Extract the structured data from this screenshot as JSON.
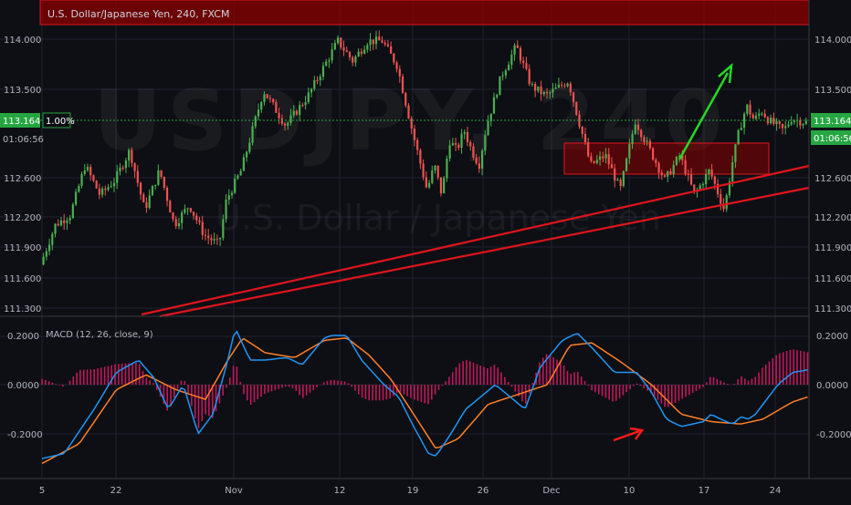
{
  "header": {
    "title": "U.S. Dollar/Japanese Yen, 240, FXCM"
  },
  "watermark": {
    "symbol": "USDJPY, 240",
    "name": "U.S. Dollar / Japanese Yen"
  },
  "price_badge": {
    "price": "113.164",
    "countdown": "01:06:56",
    "percent": "1.00%"
  },
  "macd_label": "MACD (12, 26, close, 9)",
  "colors": {
    "background": "#0d0f14",
    "bull_candle": "#4caf50",
    "bear_candle": "#ef5350",
    "resistance_zone": "#8b0000",
    "trendline": "#e0141c",
    "macd_line": "#2196f3",
    "signal_line": "#ff7f27",
    "histogram": "#c2185b",
    "current_price": "#26a641",
    "arrow_up": "#26d926",
    "arrow_macd": "#ff1a1a"
  },
  "chart_data": [
    {
      "type": "candlestick",
      "title": "U.S. Dollar/Japanese Yen, 240, FXCM",
      "x_ticks": [
        "5",
        "22",
        "Nov",
        "12",
        "19",
        "26",
        "Dec",
        "10",
        "17",
        "24"
      ],
      "y_ticks": [
        "114.000",
        "113.500",
        "112.600",
        "112.200",
        "111.900",
        "111.600",
        "111.300"
      ],
      "y_axis": "right",
      "current_price": 113.164,
      "path_x": [
        0,
        2,
        4,
        6,
        8,
        10,
        12,
        14,
        16,
        18,
        20,
        22,
        24,
        25,
        27,
        30,
        33,
        36,
        40,
        42,
        44,
        46,
        48,
        50,
        52,
        53,
        54,
        55,
        56,
        57,
        58,
        59,
        60,
        62,
        64,
        66,
        68,
        71,
        74,
        76,
        78,
        80,
        84,
        86,
        88,
        90,
        92,
        93,
        94,
        95,
        96,
        97,
        98,
        100,
        101,
        103
      ],
      "path_y": [
        111.73,
        112.13,
        112.23,
        112.73,
        112.43,
        112.58,
        112.88,
        112.28,
        112.68,
        112.13,
        112.33,
        112.03,
        111.93,
        112.38,
        112.68,
        113.48,
        113.13,
        113.43,
        113.98,
        113.78,
        113.98,
        113.98,
        113.73,
        113.08,
        112.48,
        112.73,
        112.43,
        112.98,
        112.88,
        113.08,
        112.88,
        112.73,
        113.13,
        113.63,
        113.93,
        113.53,
        113.43,
        113.58,
        112.73,
        112.83,
        112.48,
        113.18,
        112.58,
        112.83,
        112.43,
        112.68,
        112.28,
        112.73,
        113.08,
        113.33,
        113.18,
        113.28,
        113.18,
        113.08,
        113.2,
        113.16
      ],
      "resistance_zone": [
        114.15,
        114.45
      ],
      "support_zone": [
        112.7,
        113.0
      ],
      "trendlines": [
        {
          "x": [
            0,
            100
          ],
          "y": [
            111.0,
            112.8
          ]
        },
        {
          "x": [
            0,
            100
          ],
          "y": [
            110.7,
            112.45
          ]
        }
      ]
    },
    {
      "type": "line",
      "title": "MACD (12, 26, close, 9)",
      "y_ticks": [
        "0.2000",
        "0.0000",
        "-0.2000"
      ],
      "ylim": [
        -0.33,
        0.27
      ],
      "macd_x": [
        0,
        3,
        7,
        10,
        13,
        15,
        17,
        19,
        21,
        23,
        25,
        26,
        28,
        30,
        33,
        35,
        38,
        39,
        41,
        43,
        46,
        48,
        50,
        52,
        53,
        55,
        57,
        59,
        61,
        63,
        65,
        67,
        70,
        72,
        74,
        77,
        80,
        82,
        84,
        86,
        89,
        90,
        92,
        93,
        94,
        95,
        96,
        97,
        99,
        101,
        103
      ],
      "macd_y": [
        -0.3,
        -0.28,
        -0.1,
        0.05,
        0.1,
        0.03,
        -0.1,
        0.0,
        -0.2,
        -0.12,
        0.1,
        0.23,
        0.1,
        0.1,
        0.11,
        0.08,
        0.19,
        0.2,
        0.2,
        0.1,
        0.0,
        -0.05,
        -0.17,
        -0.28,
        -0.29,
        -0.2,
        -0.1,
        -0.05,
        0.0,
        -0.05,
        -0.1,
        0.07,
        0.18,
        0.21,
        0.15,
        0.05,
        0.05,
        -0.03,
        -0.14,
        -0.17,
        -0.15,
        -0.12,
        -0.15,
        -0.16,
        -0.13,
        -0.14,
        -0.12,
        -0.08,
        0.0,
        0.05,
        0.06
      ],
      "signal_x": [
        0,
        5,
        10,
        14,
        18,
        22,
        25,
        27,
        30,
        34,
        38,
        41,
        44,
        47,
        50,
        53,
        56,
        60,
        64,
        68,
        71,
        74,
        78,
        82,
        86,
        90,
        94,
        97,
        101,
        103
      ],
      "signal_y": [
        -0.32,
        -0.24,
        -0.02,
        0.04,
        -0.02,
        -0.06,
        0.1,
        0.19,
        0.13,
        0.11,
        0.18,
        0.19,
        0.12,
        0.02,
        -0.12,
        -0.26,
        -0.22,
        -0.08,
        -0.04,
        0.0,
        0.16,
        0.17,
        0.09,
        0.0,
        -0.12,
        -0.15,
        -0.16,
        -0.14,
        -0.07,
        -0.05
      ],
      "series": [
        {
          "values": "macd_y"
        },
        {
          "values": "signal_y"
        }
      ]
    }
  ]
}
